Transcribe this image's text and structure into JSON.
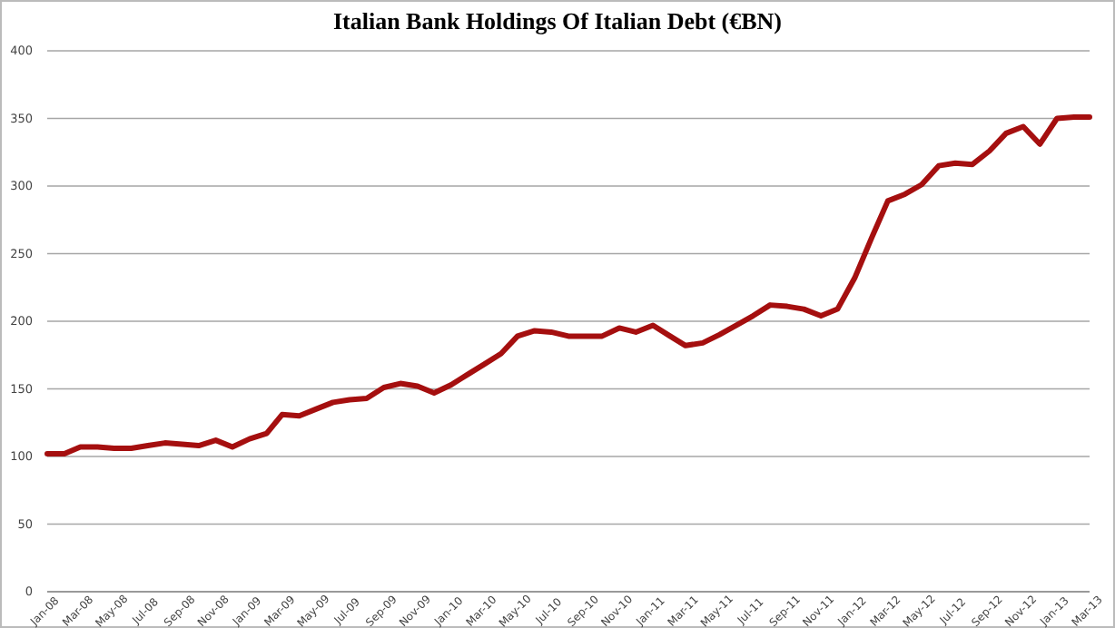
{
  "chart_data": {
    "type": "line",
    "title": "Italian Bank Holdings Of Italian Debt (€BN)",
    "x": [
      "2008-01",
      "2008-02",
      "2008-03",
      "2008-04",
      "2008-05",
      "2008-06",
      "2008-07",
      "2008-08",
      "2008-09",
      "2008-10",
      "2008-11",
      "2008-12",
      "2009-01",
      "2009-02",
      "2009-03",
      "2009-04",
      "2009-05",
      "2009-06",
      "2009-07",
      "2009-08",
      "2009-09",
      "2009-10",
      "2009-11",
      "2009-12",
      "2010-01",
      "2010-02",
      "2010-03",
      "2010-04",
      "2010-05",
      "2010-06",
      "2010-07",
      "2010-08",
      "2010-09",
      "2010-10",
      "2010-11",
      "2010-12",
      "2011-01",
      "2011-02",
      "2011-03",
      "2011-04",
      "2011-05",
      "2011-06",
      "2011-07",
      "2011-08",
      "2011-09",
      "2011-10",
      "2011-11",
      "2011-12",
      "2012-01",
      "2012-02",
      "2012-03",
      "2012-04",
      "2012-05",
      "2012-06",
      "2012-07",
      "2012-08",
      "2012-09",
      "2012-10",
      "2012-11",
      "2012-12",
      "2013-01",
      "2013-02",
      "2013-03"
    ],
    "series": [
      {
        "color": "#a50f0f",
        "values": [
          102,
          102,
          107,
          107,
          106,
          106,
          108,
          110,
          109,
          108,
          112,
          107,
          113,
          117,
          131,
          130,
          135,
          140,
          142,
          143,
          151,
          154,
          152,
          147,
          153,
          161,
          168,
          176,
          189,
          193,
          192,
          189,
          189,
          189,
          195,
          192,
          197,
          189,
          182,
          184,
          190,
          197,
          204,
          212,
          211,
          209,
          204,
          209,
          232,
          262,
          289,
          294,
          301,
          315,
          317,
          316,
          326,
          339,
          344,
          331,
          350,
          351,
          351
        ]
      }
    ],
    "xlim": [
      "2008-01",
      "2013-03"
    ],
    "xticks": [
      {
        "value": "2008-01",
        "label": "Jan-08"
      },
      {
        "value": "2008-03",
        "label": "Mar-08"
      },
      {
        "value": "2008-05",
        "label": "May-08"
      },
      {
        "value": "2008-07",
        "label": "Jul-08"
      },
      {
        "value": "2008-09",
        "label": "Sep-08"
      },
      {
        "value": "2008-11",
        "label": "Nov-08"
      },
      {
        "value": "2009-01",
        "label": "Jan-09"
      },
      {
        "value": "2009-03",
        "label": "Mar-09"
      },
      {
        "value": "2009-05",
        "label": "May-09"
      },
      {
        "value": "2009-07",
        "label": "Jul-09"
      },
      {
        "value": "2009-09",
        "label": "Sep-09"
      },
      {
        "value": "2009-11",
        "label": "Nov-09"
      },
      {
        "value": "2010-01",
        "label": "Jan-10"
      },
      {
        "value": "2010-03",
        "label": "Mar-10"
      },
      {
        "value": "2010-05",
        "label": "May-10"
      },
      {
        "value": "2010-07",
        "label": "Jul-10"
      },
      {
        "value": "2010-09",
        "label": "Sep-10"
      },
      {
        "value": "2010-11",
        "label": "Nov-10"
      },
      {
        "value": "2011-01",
        "label": "Jan-11"
      },
      {
        "value": "2011-03",
        "label": "Mar-11"
      },
      {
        "value": "2011-05",
        "label": "May-11"
      },
      {
        "value": "2011-07",
        "label": "Jul-11"
      },
      {
        "value": "2011-09",
        "label": "Sep-11"
      },
      {
        "value": "2011-11",
        "label": "Nov-11"
      },
      {
        "value": "2012-01",
        "label": "Jan-12"
      },
      {
        "value": "2012-03",
        "label": "Mar-12"
      },
      {
        "value": "2012-05",
        "label": "May-12"
      },
      {
        "value": "2012-07",
        "label": "Jul-12"
      },
      {
        "value": "2012-09",
        "label": "Sep-12"
      },
      {
        "value": "2012-11",
        "label": "Nov-12"
      },
      {
        "value": "2013-01",
        "label": "Jan-13"
      },
      {
        "value": "2013-03",
        "label": "Mar-13"
      }
    ],
    "ylim": [
      0,
      400
    ],
    "yticks": [
      0,
      50,
      100,
      150,
      200,
      250,
      300,
      350,
      400
    ],
    "grid": "y",
    "marker": "none",
    "line_style": "solid"
  }
}
